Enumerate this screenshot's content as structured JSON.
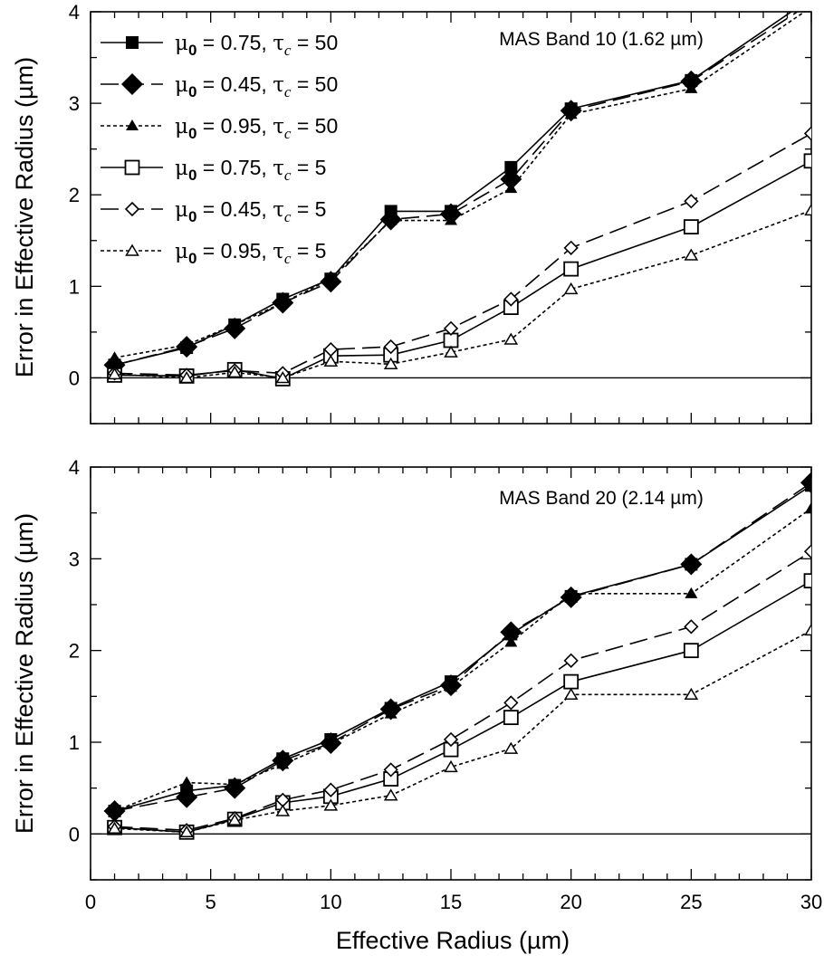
{
  "chart_data": [
    {
      "type": "line",
      "title": "MAS Band 10 (1.62 µm)",
      "xlabel": "",
      "ylabel": "Error in Effective Radius (µm)",
      "xlim": [
        0,
        30
      ],
      "ylim": [
        -0.5,
        4
      ],
      "xticks": [
        0,
        5,
        10,
        15,
        20,
        25,
        30
      ],
      "yticks": [
        0,
        1,
        2,
        3,
        4
      ],
      "grid": false,
      "legend_position": "top-left",
      "x": [
        1,
        4,
        6,
        8,
        10,
        12.5,
        15,
        17.5,
        20,
        25,
        30
      ],
      "series": [
        {
          "name": "μ0 = 0.75, τc = 50",
          "mu0": "0.75",
          "tauc": "50",
          "line": "solid",
          "marker": "filled-square",
          "values": [
            0.14,
            0.33,
            0.58,
            0.86,
            1.08,
            1.82,
            1.82,
            2.3,
            2.94,
            3.25,
            4.15
          ]
        },
        {
          "name": "μ0 = 0.45, τc = 50",
          "mu0": "0.45",
          "tauc": "50",
          "line": "dashed",
          "marker": "filled-diamond",
          "values": [
            0.14,
            0.34,
            0.54,
            0.82,
            1.05,
            1.73,
            1.79,
            2.17,
            2.92,
            3.24,
            4.1
          ]
        },
        {
          "name": "μ0 = 0.95, τc = 50",
          "mu0": "0.95",
          "tauc": "50",
          "line": "dotted",
          "marker": "filled-triangle",
          "values": [
            0.22,
            0.36,
            0.58,
            0.82,
            1.08,
            1.72,
            1.72,
            2.07,
            2.88,
            3.16,
            4.05
          ]
        },
        {
          "name": "μ0 = 0.75, τc = 5",
          "mu0": "0.75",
          "tauc": "5",
          "line": "solid",
          "marker": "open-square",
          "values": [
            0.03,
            0.02,
            0.09,
            -0.01,
            0.24,
            0.25,
            0.41,
            0.77,
            1.19,
            1.65,
            2.37
          ]
        },
        {
          "name": "μ0 = 0.45, τc = 5",
          "mu0": "0.45",
          "tauc": "5",
          "line": "dashed",
          "marker": "open-diamond",
          "values": [
            0.05,
            0.03,
            0.08,
            0.05,
            0.31,
            0.34,
            0.54,
            0.86,
            1.42,
            1.93,
            2.67
          ]
        },
        {
          "name": "μ0 = 0.95, τc = 5",
          "mu0": "0.95",
          "tauc": "5",
          "line": "dotted",
          "marker": "open-triangle",
          "values": [
            0.04,
            0.0,
            0.06,
            0.0,
            0.18,
            0.15,
            0.28,
            0.42,
            0.97,
            1.34,
            1.83
          ]
        }
      ]
    },
    {
      "type": "line",
      "title": "MAS Band 20 (2.14 µm)",
      "xlabel": "Effective Radius (µm)",
      "ylabel": "Error in Effective Radius (µm)",
      "xlim": [
        0,
        30
      ],
      "ylim": [
        -0.5,
        4
      ],
      "xticks": [
        0,
        5,
        10,
        15,
        20,
        25,
        30
      ],
      "yticks": [
        0,
        1,
        2,
        3,
        4
      ],
      "grid": false,
      "x": [
        1,
        4,
        6,
        8,
        10,
        12.5,
        15,
        17.5,
        20,
        25,
        30
      ],
      "series": [
        {
          "name": "μ0 = 0.75, τc = 50",
          "line": "solid",
          "marker": "filled-square",
          "values": [
            0.25,
            0.47,
            0.53,
            0.82,
            1.03,
            1.37,
            1.66,
            2.18,
            2.59,
            2.94,
            3.8
          ]
        },
        {
          "name": "μ0 = 0.45, τc = 50",
          "line": "dashed",
          "marker": "filled-diamond",
          "values": [
            0.25,
            0.4,
            0.5,
            0.8,
            0.99,
            1.36,
            1.62,
            2.2,
            2.58,
            2.94,
            3.83
          ]
        },
        {
          "name": "μ0 = 0.95, τc = 50",
          "line": "dotted",
          "marker": "filled-triangle",
          "values": [
            0.25,
            0.56,
            0.54,
            0.76,
            0.98,
            1.31,
            1.6,
            2.09,
            2.62,
            2.62,
            3.55
          ]
        },
        {
          "name": "μ0 = 0.75, τc = 5",
          "line": "solid",
          "marker": "open-square",
          "values": [
            0.07,
            0.02,
            0.16,
            0.34,
            0.41,
            0.6,
            0.92,
            1.27,
            1.66,
            2.0,
            2.76
          ]
        },
        {
          "name": "μ0 = 0.45, τc = 5",
          "line": "dashed",
          "marker": "open-diamond",
          "values": [
            0.08,
            0.04,
            0.17,
            0.37,
            0.48,
            0.7,
            1.03,
            1.43,
            1.89,
            2.26,
            3.08
          ]
        },
        {
          "name": "μ0 = 0.95, τc = 5",
          "line": "dotted",
          "marker": "open-triangle",
          "values": [
            0.06,
            0.02,
            0.15,
            0.25,
            0.31,
            0.42,
            0.73,
            0.93,
            1.52,
            1.52,
            2.22
          ]
        }
      ]
    }
  ]
}
